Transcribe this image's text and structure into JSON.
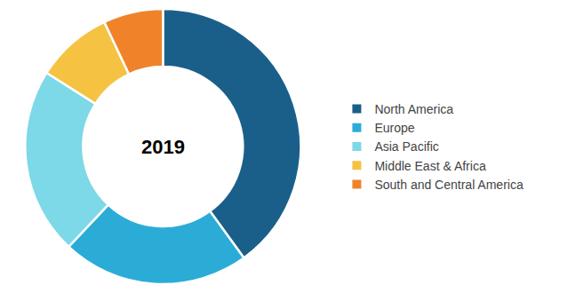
{
  "chart_data": {
    "type": "pie",
    "categories": [
      "North America",
      "Europe",
      "Asia Pacific",
      "Middle East & Africa",
      "South and Central America"
    ],
    "values": [
      40,
      22,
      22,
      9,
      7
    ],
    "colors": [
      "#1a5f8a",
      "#2bacd6",
      "#7dd8e8",
      "#f5c242",
      "#f0832a"
    ],
    "annotations": [
      "2019"
    ],
    "legend": "right"
  }
}
